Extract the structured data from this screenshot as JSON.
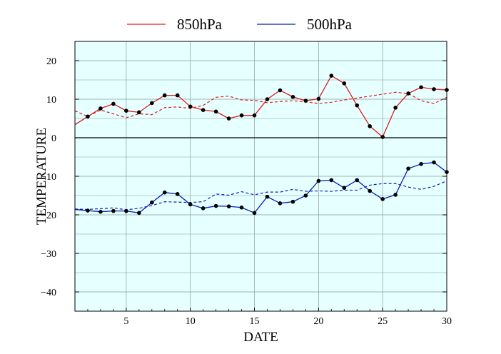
{
  "chart_data": {
    "type": "line",
    "title": "",
    "xlabel": "DATE",
    "ylabel": "TEMPERATURE",
    "xlim": [
      1,
      30
    ],
    "ylim": [
      -45,
      25
    ],
    "xticks": [
      5,
      10,
      15,
      20,
      25,
      30
    ],
    "yticks": [
      -40,
      -30,
      -20,
      -10,
      0,
      10,
      20
    ],
    "xtick_labels": [
      "5",
      "10",
      "15",
      "20",
      "25",
      "30"
    ],
    "ytick_labels": [
      "−40",
      "−30",
      "−20",
      "−10",
      "0",
      "10",
      "20"
    ],
    "grid": true,
    "background": "#e6ffff",
    "legend": {
      "placement": "top"
    },
    "x": [
      1,
      2,
      3,
      4,
      5,
      6,
      7,
      8,
      9,
      10,
      11,
      12,
      13,
      14,
      15,
      16,
      17,
      18,
      19,
      20,
      21,
      22,
      23,
      24,
      25,
      26,
      27,
      28,
      29,
      30
    ],
    "series": [
      {
        "name": "850hPa",
        "color": "#e31a1c",
        "values": [
          3.4,
          5.5,
          7.6,
          8.8,
          7.0,
          6.6,
          9.0,
          11.0,
          11.0,
          8.1,
          7.2,
          6.8,
          5.0,
          5.8,
          5.8,
          10.0,
          12.3,
          10.6,
          9.6,
          10.1,
          16.1,
          14.1,
          8.4,
          3.0,
          0.2,
          7.8,
          11.5,
          13.1,
          12.6,
          12.4
        ],
        "climatology": [
          7.0,
          5.5,
          7.2,
          6.2,
          5.2,
          6.2,
          6.0,
          7.8,
          8.0,
          7.6,
          8.4,
          10.5,
          10.8,
          9.8,
          9.7,
          9.1,
          9.4,
          9.6,
          9.3,
          8.9,
          9.2,
          9.8,
          10.3,
          10.8,
          11.3,
          11.8,
          11.5,
          9.6,
          8.9,
          10.5
        ]
      },
      {
        "name": "500hPa",
        "color": "#0a1fb5",
        "values": [
          -18.6,
          -18.9,
          -19.2,
          -19.0,
          -19.0,
          -19.5,
          -16.8,
          -14.2,
          -14.6,
          -17.3,
          -18.3,
          -17.7,
          -17.8,
          -18.1,
          -19.5,
          -15.3,
          -17.0,
          -16.6,
          -15.0,
          -11.2,
          -11.0,
          -13.0,
          -11.0,
          -13.8,
          -15.9,
          -14.8,
          -8.0,
          -6.8,
          -6.4,
          -8.9
        ],
        "climatology": [
          -18.5,
          -18.6,
          -18.4,
          -18.2,
          -18.7,
          -18.3,
          -17.6,
          -16.6,
          -16.7,
          -16.8,
          -16.6,
          -14.6,
          -14.9,
          -14.0,
          -14.8,
          -14.1,
          -14.1,
          -13.4,
          -13.9,
          -13.8,
          -13.9,
          -13.6,
          -13.6,
          -12.3,
          -11.9,
          -11.9,
          -12.8,
          -13.4,
          -12.6,
          -11.2
        ]
      }
    ]
  }
}
